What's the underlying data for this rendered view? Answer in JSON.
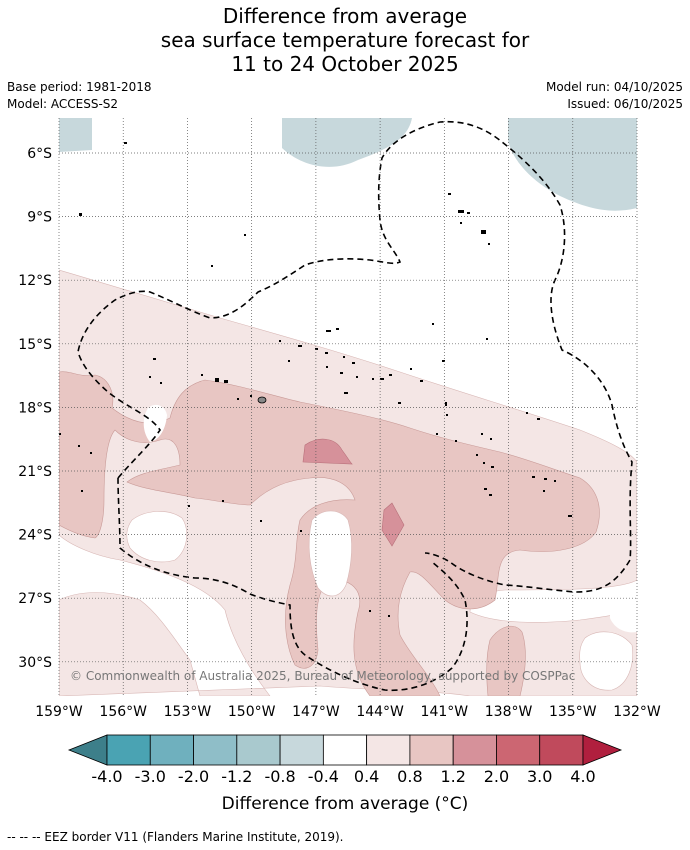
{
  "title": {
    "line1": "Difference from average",
    "line2": "sea surface temperature forecast for",
    "line3": "11 to 24 October 2025"
  },
  "meta": {
    "base_period": "Base period: 1981-2018",
    "model": "Model: ACCESS-S2",
    "model_run": "Model run: 04/10/2025",
    "issued": "Issued: 06/10/2025"
  },
  "map": {
    "lat_labels": [
      "6°S",
      "9°S",
      "12°S",
      "15°S",
      "18°S",
      "21°S",
      "24°S",
      "27°S",
      "30°S"
    ],
    "lat_values": [
      -6,
      -9,
      -12,
      -15,
      -18,
      -21,
      -24,
      -27,
      -30
    ],
    "lon_labels": [
      "159°W",
      "156°W",
      "153°W",
      "150°W",
      "147°W",
      "144°W",
      "141°W",
      "138°W",
      "135°W",
      "132°W"
    ],
    "lon_values": [
      -159,
      -156,
      -153,
      -150,
      -147,
      -144,
      -141,
      -138,
      -135,
      -132
    ],
    "copyright": "© Commonwealth of Australia 2025, Bureau of Meteorology, supported by COSPPac"
  },
  "colorbar": {
    "tick_labels": [
      "-4.0",
      "-3.0",
      "-2.0",
      "-1.2",
      "-0.8",
      "-0.4",
      "0.4",
      "0.8",
      "1.2",
      "2.0",
      "3.0",
      "4.0"
    ],
    "colors": [
      "#3d7f8a",
      "#4aa3b3",
      "#6fb0be",
      "#8fbec8",
      "#a9c9ce",
      "#c7d8dc",
      "#ffffff",
      "#f4e6e5",
      "#e8c6c3",
      "#d6919a",
      "#cc6672",
      "#c04a5c",
      "#b01f3e"
    ],
    "title": "Difference from average (°C)"
  },
  "footer": "--  --  -- EEZ border V11 (Flanders Marine Institute, 2019)."
}
